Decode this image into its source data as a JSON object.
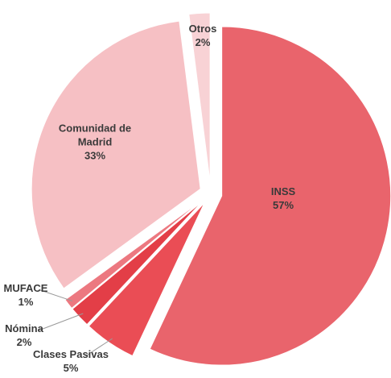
{
  "chart_data": {
    "type": "pie",
    "categories": [
      "INSS",
      "Clases Pasivas",
      "Nómina",
      "MUFACE",
      "Comunidad de Madrid",
      "Otros"
    ],
    "values": [
      57,
      5,
      2,
      1,
      33,
      2
    ],
    "value_labels": [
      "57%",
      "5%",
      "2%",
      "1%",
      "33%",
      "2%"
    ],
    "colors": [
      "#e9646c",
      "#ea4d55",
      "#e33e47",
      "#ec7880",
      "#f6c0c4",
      "#f8d2d5"
    ]
  }
}
